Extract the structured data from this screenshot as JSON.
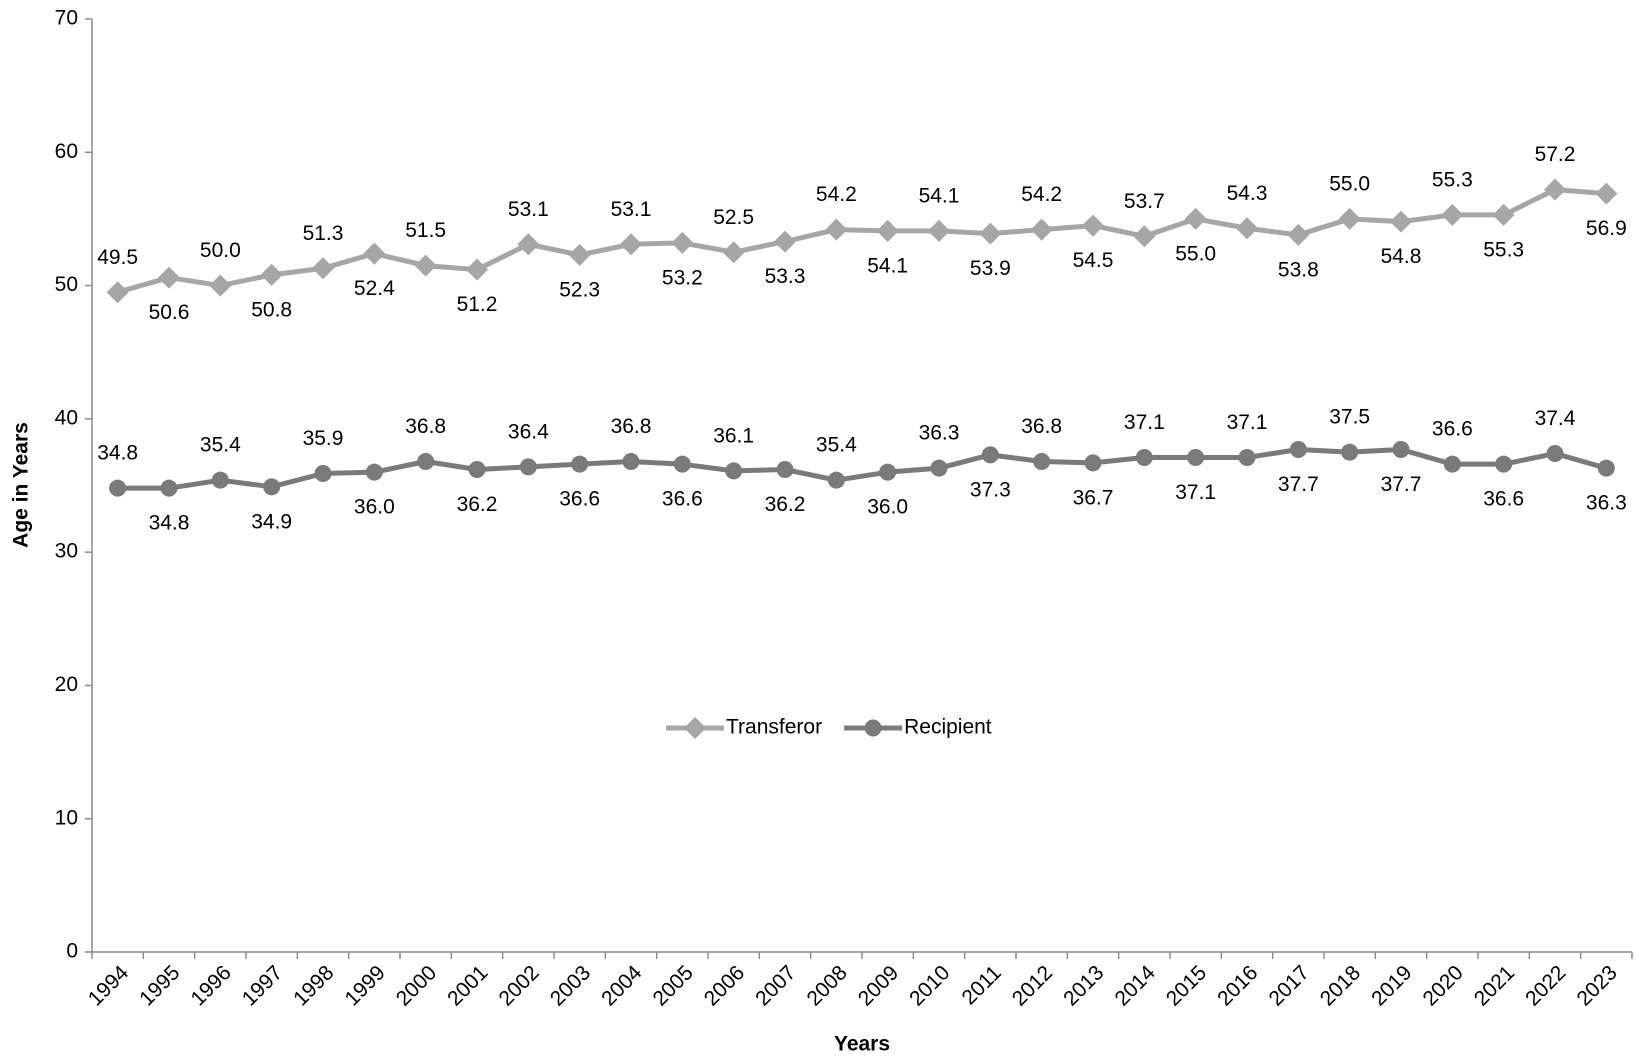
{
  "chart_data": {
    "type": "line",
    "x_label": "Years",
    "y_label": "Age in Years",
    "categories": [
      "1994",
      "1995",
      "1996",
      "1997",
      "1998",
      "1999",
      "2000",
      "2001",
      "2002",
      "2003",
      "2004",
      "2005",
      "2006",
      "2007",
      "2008",
      "2009",
      "2010",
      "2011",
      "2012",
      "2013",
      "2014",
      "2015",
      "2016",
      "2017",
      "2018",
      "2019",
      "2020",
      "2021",
      "2022",
      "2023"
    ],
    "series": [
      {
        "name": "Transferor",
        "color": "#a6a6a6",
        "marker": "diamond",
        "values": [
          49.5,
          50.6,
          50.0,
          50.8,
          51.3,
          52.4,
          51.5,
          51.2,
          53.1,
          52.3,
          53.1,
          53.2,
          52.5,
          53.3,
          54.2,
          54.1,
          54.1,
          53.9,
          54.2,
          54.5,
          53.7,
          55.0,
          54.3,
          53.8,
          55.0,
          54.8,
          55.3,
          55.3,
          57.2,
          56.9
        ],
        "value_labels": [
          "49.5",
          "50.6",
          "50.0",
          "50.8",
          "51.3",
          "52.4",
          "51.5",
          "51.2",
          "53.1",
          "52.3",
          "53.1",
          "53.2",
          "52.5",
          "53.3",
          "54.2",
          "54.1",
          "54.1",
          "53.9",
          "54.2",
          "54.5",
          "53.7",
          "55.0",
          "54.3",
          "53.8",
          "55.0",
          "54.8",
          "55.3",
          "55.3",
          "57.2",
          "56.9"
        ]
      },
      {
        "name": "Recipient",
        "color": "#7a7a7a",
        "marker": "circle",
        "values": [
          34.8,
          34.8,
          35.4,
          34.9,
          35.9,
          36.0,
          36.8,
          36.2,
          36.4,
          36.6,
          36.8,
          36.6,
          36.1,
          36.2,
          35.4,
          36.0,
          36.3,
          37.3,
          36.8,
          36.7,
          37.1,
          37.1,
          37.1,
          37.7,
          37.5,
          37.7,
          36.6,
          36.6,
          37.4,
          36.3
        ],
        "value_labels": [
          "34.8",
          "34.8",
          "35.4",
          "34.9",
          "35.9",
          "36.0",
          "36.8",
          "36.2",
          "36.4",
          "36.6",
          "36.8",
          "36.6",
          "36.1",
          "36.2",
          "35.4",
          "36.0",
          "36.3",
          "37.3",
          "36.8",
          "36.7",
          "37.1",
          "37.1",
          "37.1",
          "37.7",
          "37.5",
          "37.7",
          "36.6",
          "36.6",
          "37.4",
          "36.3"
        ]
      }
    ],
    "ylim": [
      0,
      70
    ],
    "yticks": [
      0,
      10,
      20,
      30,
      40,
      50,
      60,
      70
    ],
    "grid": false,
    "legend": "center"
  }
}
